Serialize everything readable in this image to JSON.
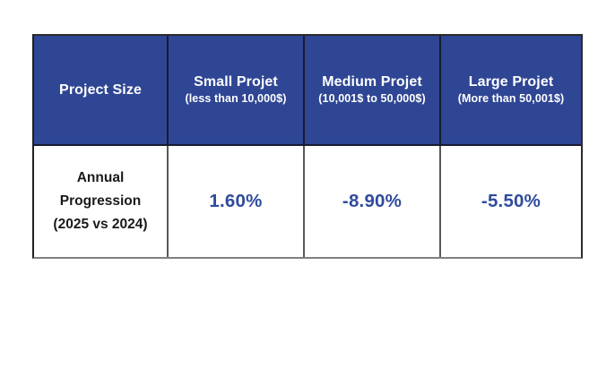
{
  "chart_data": {
    "type": "table",
    "title": "",
    "columns": [
      "Project Size",
      "Small Projet (less than 10,000$)",
      "Medium Projet (10,001$ to 50,000$)",
      "Large Projet (More than 50,001$)"
    ],
    "rows": [
      [
        "Annual Progression (2025 vs 2024)",
        "1.60%",
        "-8.90%",
        "-5.50%"
      ]
    ],
    "values_numeric": [
      1.6,
      -8.9,
      -5.5
    ]
  },
  "table": {
    "header": [
      {
        "title": "Project Size",
        "subtitle": ""
      },
      {
        "title": "Small Projet",
        "subtitle": "(less than 10,000$)"
      },
      {
        "title": "Medium Projet",
        "subtitle": "(10,001$ to 50,000$)"
      },
      {
        "title": "Large Projet",
        "subtitle": "(More than 50,001$)"
      }
    ],
    "row": {
      "label_lines": [
        "Annual",
        "Progression",
        "(2025 vs 2024)"
      ],
      "values": [
        "1.60%",
        "-8.90%",
        "-5.50%"
      ]
    }
  },
  "colors": {
    "header_bg": "#2f4694",
    "header_text": "#ffffff",
    "header_divider": "#181a30",
    "body_divider": "#595959",
    "outer_border_dark": "#2b2b2b",
    "outer_border_bottom": "#808080",
    "value_text": "#2f4b9d",
    "label_text": "#1a1a1a"
  }
}
